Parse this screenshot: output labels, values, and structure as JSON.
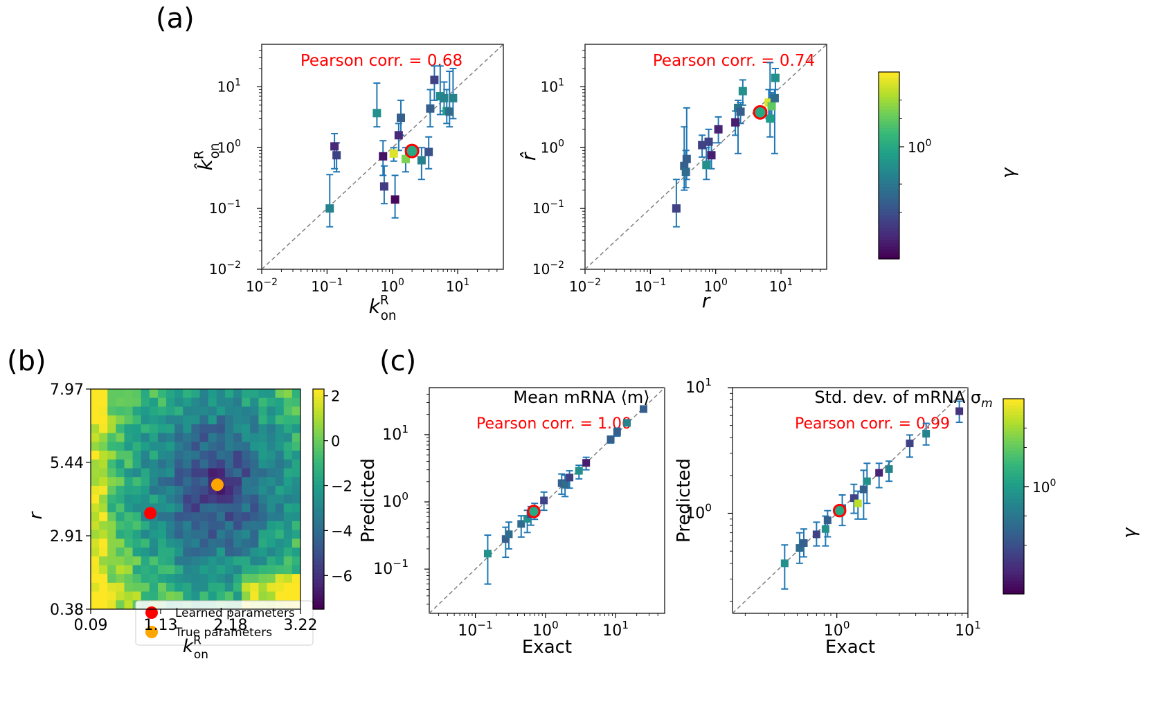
{
  "panel_labels": {
    "a": "(a)",
    "b": "(b)",
    "c": "(c)"
  },
  "colors": {
    "errorbar": "#1f77b4",
    "diagonal": "#808080",
    "annotation": "#ff0000",
    "learned": "#ff0000",
    "true": "#ffa500",
    "viridis": [
      "#440154",
      "#482878",
      "#3e4989",
      "#31688e",
      "#26828e",
      "#1f9e89",
      "#35b779",
      "#6ece58",
      "#b5de2b",
      "#fde725"
    ]
  },
  "chart_data": [
    {
      "id": "a1",
      "type": "scatter",
      "title": "",
      "xlabel_main": "k",
      "xlabel_sup": "R",
      "xlabel_sub": "on",
      "ylabel_main": "k̂",
      "ylabel_sup": "R",
      "ylabel_sub": "on",
      "xscale": "log",
      "yscale": "log",
      "xlim": [
        0.01,
        50
      ],
      "ylim": [
        0.01,
        50
      ],
      "xticks": [
        0.01,
        0.1,
        1,
        10
      ],
      "yticks": [
        0.01,
        0.1,
        1,
        10
      ],
      "xtick_labels": [
        [
          "10",
          "−2"
        ],
        [
          "10",
          "−1"
        ],
        [
          "10",
          "0"
        ],
        [
          "10",
          "1"
        ]
      ],
      "ytick_labels": [
        [
          "10",
          "−2"
        ],
        [
          "10",
          "−1"
        ],
        [
          "10",
          "0"
        ],
        [
          "10",
          "1"
        ]
      ],
      "annotation": "Pearson corr. = 0.68",
      "color_encoding": "γ",
      "points": [
        {
          "x": 0.11,
          "y": 0.1,
          "ylo": 0.05,
          "yhi": 0.36,
          "g": 0.45
        },
        {
          "x": 0.13,
          "y": 1.05,
          "ylo": 0.45,
          "yhi": 1.7,
          "g": 0.12
        },
        {
          "x": 0.14,
          "y": 0.75,
          "ylo": 0.4,
          "yhi": 1.2,
          "g": 0.2
        },
        {
          "x": 0.58,
          "y": 3.7,
          "ylo": 2.2,
          "yhi": 11.5,
          "g": 0.5
        },
        {
          "x": 0.72,
          "y": 0.72,
          "ylo": 0.35,
          "yhi": 1.3,
          "g": 0.05
        },
        {
          "x": 0.75,
          "y": 0.23,
          "ylo": 0.12,
          "yhi": 0.5,
          "g": 0.18
        },
        {
          "x": 1.1,
          "y": 0.14,
          "ylo": 0.07,
          "yhi": 0.35,
          "g": 0.02
        },
        {
          "x": 1.05,
          "y": 0.8,
          "ylo": 0.6,
          "yhi": 1.0,
          "g": 0.95
        },
        {
          "x": 1.25,
          "y": 1.6,
          "ylo": 0.9,
          "yhi": 2.5,
          "g": 0.12
        },
        {
          "x": 1.35,
          "y": 3.1,
          "ylo": 1.6,
          "yhi": 6.0,
          "g": 0.3
        },
        {
          "x": 1.6,
          "y": 0.65,
          "ylo": 0.4,
          "yhi": 1.0,
          "g": 0.8
        },
        {
          "x": 2.8,
          "y": 0.62,
          "ylo": 0.3,
          "yhi": 1.0,
          "g": 0.45
        },
        {
          "x": 3.6,
          "y": 0.85,
          "ylo": 0.45,
          "yhi": 1.5,
          "g": 0.25
        },
        {
          "x": 3.8,
          "y": 4.4,
          "ylo": 2.2,
          "yhi": 9.0,
          "g": 0.3
        },
        {
          "x": 4.4,
          "y": 13.0,
          "ylo": 6.0,
          "yhi": 22.0,
          "g": 0.2
        },
        {
          "x": 5.4,
          "y": 7.0,
          "ylo": 3.5,
          "yhi": 22.0,
          "g": 0.48
        },
        {
          "x": 6.2,
          "y": 6.5,
          "ylo": 4.0,
          "yhi": 12.0,
          "g": 0.45
        },
        {
          "x": 6.8,
          "y": 4.0,
          "ylo": 2.5,
          "yhi": 9.0,
          "g": 0.55
        },
        {
          "x": 7.5,
          "y": 3.9,
          "ylo": 2.2,
          "yhi": 18.0,
          "g": 0.35
        },
        {
          "x": 8.5,
          "y": 6.5,
          "ylo": 3.0,
          "yhi": 20.0,
          "g": 0.45
        }
      ],
      "highlight": {
        "x": 2.0,
        "y": 0.88
      }
    },
    {
      "id": "a2",
      "type": "scatter",
      "title": "",
      "xlabel_main": "r",
      "xlabel_sup": "",
      "xlabel_sub": "",
      "ylabel_main": "r̂",
      "ylabel_sup": "",
      "ylabel_sub": "",
      "xscale": "log",
      "yscale": "log",
      "xlim": [
        0.01,
        50
      ],
      "ylim": [
        0.01,
        50
      ],
      "xticks": [
        0.01,
        0.1,
        1,
        10
      ],
      "yticks": [
        0.01,
        0.1,
        1,
        10
      ],
      "xtick_labels": [
        [
          "10",
          "−2"
        ],
        [
          "10",
          "−1"
        ],
        [
          "10",
          "0"
        ],
        [
          "10",
          "1"
        ]
      ],
      "ytick_labels": [
        [
          "10",
          "−2"
        ],
        [
          "10",
          "−1"
        ],
        [
          "10",
          "0"
        ],
        [
          "10",
          "1"
        ]
      ],
      "annotation": "Pearson corr. = 0.74",
      "color_encoding": "γ",
      "points": [
        {
          "x": 0.25,
          "y": 0.1,
          "ylo": 0.05,
          "yhi": 0.3,
          "g": 0.2
        },
        {
          "x": 0.33,
          "y": 0.5,
          "ylo": 0.2,
          "yhi": 2.2,
          "g": 0.3
        },
        {
          "x": 0.35,
          "y": 0.4,
          "ylo": 0.22,
          "yhi": 0.9,
          "g": 0.35
        },
        {
          "x": 0.36,
          "y": 0.65,
          "ylo": 0.3,
          "yhi": 4.5,
          "g": 0.3
        },
        {
          "x": 0.62,
          "y": 1.1,
          "ylo": 0.7,
          "yhi": 1.6,
          "g": 0.2
        },
        {
          "x": 0.72,
          "y": 0.52,
          "ylo": 0.3,
          "yhi": 1.0,
          "g": 0.5
        },
        {
          "x": 0.78,
          "y": 1.25,
          "ylo": 0.6,
          "yhi": 2.0,
          "g": 0.2
        },
        {
          "x": 0.86,
          "y": 0.75,
          "ylo": 0.45,
          "yhi": 1.2,
          "g": 0.08
        },
        {
          "x": 1.1,
          "y": 2.0,
          "ylo": 1.2,
          "yhi": 3.2,
          "g": 0.1
        },
        {
          "x": 2.0,
          "y": 2.6,
          "ylo": 1.6,
          "yhi": 4.0,
          "g": 0.08
        },
        {
          "x": 2.2,
          "y": 4.5,
          "ylo": 0.8,
          "yhi": 6.0,
          "g": 0.4
        },
        {
          "x": 2.4,
          "y": 3.9,
          "ylo": 2.5,
          "yhi": 5.5,
          "g": 0.3
        },
        {
          "x": 2.6,
          "y": 8.5,
          "ylo": 5.0,
          "yhi": 13.0,
          "g": 0.5
        },
        {
          "x": 6.5,
          "y": 5.5,
          "ylo": 3.0,
          "yhi": 9.0,
          "g": 0.95
        },
        {
          "x": 6.8,
          "y": 3.0,
          "ylo": 1.5,
          "yhi": 25.0,
          "g": 0.55
        },
        {
          "x": 7.2,
          "y": 4.8,
          "ylo": 3.2,
          "yhi": 8.0,
          "g": 0.75
        },
        {
          "x": 8.0,
          "y": 6.5,
          "ylo": 0.8,
          "yhi": 9.0,
          "g": 0.35
        },
        {
          "x": 8.2,
          "y": 14.0,
          "ylo": 7.0,
          "yhi": 20.0,
          "g": 0.5
        }
      ],
      "highlight": {
        "x": 4.8,
        "y": 3.8
      }
    },
    {
      "id": "a_colorbar",
      "type": "colorbar",
      "label": "γ",
      "tick_labels": [
        [
          "10",
          "0"
        ]
      ],
      "tick_fraction": 0.6
    },
    {
      "id": "b",
      "type": "heatmap",
      "xlabel_main": "k",
      "xlabel_sup": "R",
      "xlabel_sub": "on",
      "ylabel": "r",
      "rows": 25,
      "cols": 25,
      "xticks": [
        "0.09",
        "1.13",
        "2.18",
        "3.22"
      ],
      "yticks": [
        "0.38",
        "2.91",
        "5.44",
        "7.97"
      ],
      "xlim": [
        0.09,
        3.22
      ],
      "ylim": [
        0.38,
        7.97
      ],
      "colorbar_ticks": [
        2,
        0,
        -2,
        -4,
        -6
      ],
      "colorbar_tick_labels": [
        "2",
        "0",
        "−2",
        "−4",
        "−6"
      ],
      "vmin": -7.5,
      "vmax": 2.3,
      "learned": {
        "x": 0.98,
        "y": 3.69
      },
      "true": {
        "x": 1.98,
        "y": 4.67
      },
      "legend": [
        "Learned parameters",
        "True parameters"
      ]
    },
    {
      "id": "c1",
      "type": "scatter",
      "title": "Mean mRNA ⟨m⟩",
      "xlabel_main": "Exact",
      "xlabel_sup": "",
      "xlabel_sub": "",
      "ylabel_main": "Predicted",
      "ylabel_sup": "",
      "ylabel_sub": "",
      "xscale": "log",
      "yscale": "log",
      "xlim": [
        0.022,
        50
      ],
      "ylim": [
        0.022,
        50
      ],
      "xticks": [
        0.1,
        1,
        10
      ],
      "yticks": [
        0.1,
        1,
        10
      ],
      "xtick_labels": [
        [
          "10",
          "−1"
        ],
        [
          "10",
          "0"
        ],
        [
          "10",
          "1"
        ]
      ],
      "ytick_labels": [
        [
          "10",
          "−1"
        ],
        [
          "10",
          "0"
        ],
        [
          "10",
          "1"
        ]
      ],
      "annotation": "Pearson corr. = 1.00",
      "color_encoding": "γ",
      "points": [
        {
          "x": 0.15,
          "y": 0.17,
          "ylo": 0.06,
          "yhi": 0.32,
          "g": 0.5
        },
        {
          "x": 0.27,
          "y": 0.28,
          "ylo": 0.15,
          "yhi": 0.42,
          "g": 0.3
        },
        {
          "x": 0.3,
          "y": 0.33,
          "ylo": 0.2,
          "yhi": 0.5,
          "g": 0.35
        },
        {
          "x": 0.45,
          "y": 0.47,
          "ylo": 0.3,
          "yhi": 0.62,
          "g": 0.35
        },
        {
          "x": 0.55,
          "y": 0.56,
          "ylo": 0.35,
          "yhi": 0.75,
          "g": 0.5
        },
        {
          "x": 0.62,
          "y": 0.66,
          "ylo": 0.45,
          "yhi": 0.85,
          "g": 0.2
        },
        {
          "x": 0.7,
          "y": 0.75,
          "ylo": 0.55,
          "yhi": 0.95,
          "g": 0.1
        },
        {
          "x": 0.95,
          "y": 1.05,
          "ylo": 0.75,
          "yhi": 1.4,
          "g": 0.2
        },
        {
          "x": 1.7,
          "y": 1.9,
          "ylo": 1.3,
          "yhi": 2.6,
          "g": 0.3
        },
        {
          "x": 1.9,
          "y": 1.8,
          "ylo": 1.2,
          "yhi": 2.5,
          "g": 0.35
        },
        {
          "x": 2.2,
          "y": 2.3,
          "ylo": 1.6,
          "yhi": 2.9,
          "g": 0.2
        },
        {
          "x": 3.0,
          "y": 2.9,
          "ylo": 2.2,
          "yhi": 3.5,
          "g": 0.5
        },
        {
          "x": 3.8,
          "y": 3.8,
          "ylo": 3.0,
          "yhi": 4.6,
          "g": 0.08
        },
        {
          "x": 8.5,
          "y": 8.5,
          "ylo": 7.5,
          "yhi": 9.5,
          "g": 0.3
        },
        {
          "x": 10.5,
          "y": 11.0,
          "ylo": 9.5,
          "yhi": 12.5,
          "g": 0.3
        },
        {
          "x": 14.5,
          "y": 15.0,
          "ylo": 13.5,
          "yhi": 16.5,
          "g": 0.45
        },
        {
          "x": 25.0,
          "y": 24.0,
          "ylo": 22.0,
          "yhi": 26.0,
          "g": 0.3
        }
      ],
      "highlight": {
        "x": 0.68,
        "y": 0.72
      }
    },
    {
      "id": "c2",
      "type": "scatter",
      "title": "Std. dev. of mRNA σ",
      "title_sub": "m",
      "xlabel_main": "Exact",
      "xlabel_sup": "",
      "xlabel_sub": "",
      "ylabel_main": "Predicted",
      "ylabel_sup": "",
      "ylabel_sub": "",
      "xscale": "log",
      "yscale": "log",
      "xlim": [
        0.16,
        10
      ],
      "ylim": [
        0.16,
        10
      ],
      "xticks": [
        1,
        10
      ],
      "yticks": [
        1,
        10
      ],
      "xtick_labels": [
        [
          "10",
          "0"
        ],
        [
          "10",
          "1"
        ]
      ],
      "ytick_labels": [
        [
          "10",
          "0"
        ],
        [
          "10",
          "1"
        ]
      ],
      "annotation": "Pearson corr. = 0.99",
      "color_encoding": "γ",
      "points": [
        {
          "x": 0.4,
          "y": 0.4,
          "ylo": 0.25,
          "yhi": 0.56,
          "g": 0.5
        },
        {
          "x": 0.52,
          "y": 0.53,
          "ylo": 0.4,
          "yhi": 0.7,
          "g": 0.35
        },
        {
          "x": 0.56,
          "y": 0.58,
          "ylo": 0.45,
          "yhi": 0.75,
          "g": 0.3
        },
        {
          "x": 0.7,
          "y": 0.68,
          "ylo": 0.55,
          "yhi": 0.85,
          "g": 0.2
        },
        {
          "x": 0.82,
          "y": 0.75,
          "ylo": 0.55,
          "yhi": 0.95,
          "g": 0.5
        },
        {
          "x": 0.85,
          "y": 0.88,
          "ylo": 0.65,
          "yhi": 1.05,
          "g": 0.3
        },
        {
          "x": 1.1,
          "y": 1.1,
          "ylo": 0.8,
          "yhi": 1.4,
          "g": 0.35
        },
        {
          "x": 1.35,
          "y": 1.32,
          "ylo": 1.0,
          "yhi": 1.7,
          "g": 0.2
        },
        {
          "x": 1.45,
          "y": 1.2,
          "ylo": 0.9,
          "yhi": 1.5,
          "g": 0.9
        },
        {
          "x": 1.6,
          "y": 1.55,
          "ylo": 0.9,
          "yhi": 2.2,
          "g": 0.3
        },
        {
          "x": 1.7,
          "y": 1.8,
          "ylo": 1.2,
          "yhi": 2.5,
          "g": 0.5
        },
        {
          "x": 2.1,
          "y": 2.1,
          "ylo": 1.6,
          "yhi": 2.5,
          "g": 0.1
        },
        {
          "x": 2.5,
          "y": 2.25,
          "ylo": 1.8,
          "yhi": 2.6,
          "g": 0.45
        },
        {
          "x": 3.6,
          "y": 3.6,
          "ylo": 2.8,
          "yhi": 4.2,
          "g": 0.2
        },
        {
          "x": 4.8,
          "y": 4.3,
          "ylo": 3.5,
          "yhi": 5.2,
          "g": 0.45
        },
        {
          "x": 8.6,
          "y": 6.5,
          "ylo": 5.3,
          "yhi": 7.8,
          "g": 0.15
        }
      ],
      "highlight": {
        "x": 1.05,
        "y": 1.05
      }
    },
    {
      "id": "c_colorbar",
      "type": "colorbar",
      "label": "γ",
      "tick_labels": [
        [
          "10",
          "0"
        ]
      ],
      "tick_fraction": 0.55
    }
  ]
}
